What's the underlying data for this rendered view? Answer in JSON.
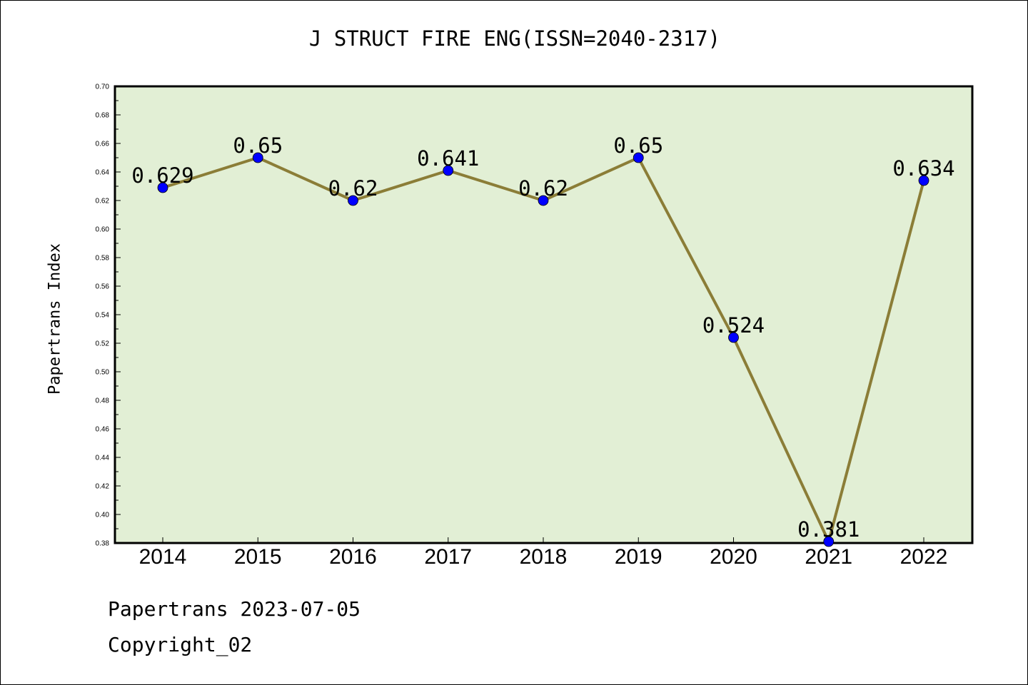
{
  "footer": {
    "date_line": "Papertrans 2023-07-05",
    "copyright_line": "Copyright_02"
  },
  "chart_data": {
    "type": "line",
    "title": "J STRUCT FIRE ENG(ISSN=2040-2317)",
    "xlabel": "",
    "ylabel": "Papertrans Index",
    "categories": [
      "2014",
      "2015",
      "2016",
      "2017",
      "2018",
      "2019",
      "2020",
      "2021",
      "2022"
    ],
    "series": [
      {
        "values": [
          0.629,
          0.65,
          0.62,
          0.641,
          0.62,
          0.65,
          0.524,
          0.381,
          0.634
        ],
        "labels": [
          "0.629",
          "0.65",
          "0.62",
          "0.641",
          "0.62",
          "0.65",
          "0.524",
          "0.381",
          "0.634"
        ],
        "line_color": "#8b7d37",
        "marker_color": "#0000ff"
      }
    ],
    "ylim": [
      0.38,
      0.7
    ],
    "yticks": [
      "0.38",
      "0.40",
      "0.42",
      "0.44",
      "0.46",
      "0.48",
      "0.50",
      "0.52",
      "0.54",
      "0.56",
      "0.58",
      "0.60",
      "0.62",
      "0.64",
      "0.66",
      "0.68",
      "0.70"
    ],
    "plot_background": "#e2efd5",
    "grid": false,
    "legend": "none"
  }
}
